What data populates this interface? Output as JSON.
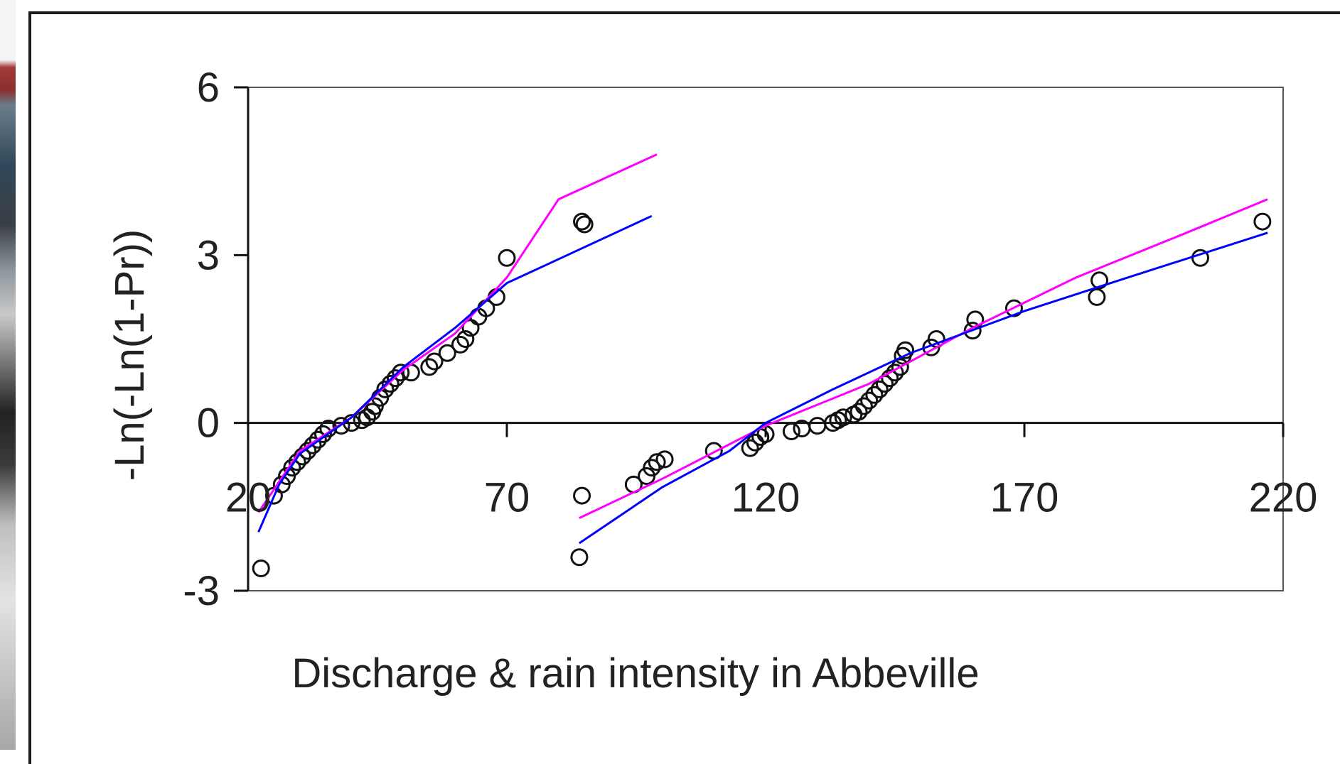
{
  "chart_data": {
    "type": "scatter",
    "title": "",
    "xlabel": "Discharge & rain intensity in Abbeville",
    "ylabel": "-Ln(-Ln(1-Pr))",
    "xlim": [
      20,
      220
    ],
    "ylim": [
      -3,
      6
    ],
    "x_ticks": [
      20,
      70,
      120,
      170,
      220
    ],
    "x_tick_labels": [
      "20",
      "70",
      "120",
      "170",
      "220"
    ],
    "y_ticks": [
      -3,
      0,
      3,
      6
    ],
    "y_tick_labels": [
      "-3",
      "0",
      "3",
      "6"
    ],
    "zero_line": true,
    "grid": false,
    "legend": "none",
    "series": [
      {
        "kind": "points",
        "marker": "open-circle",
        "color": "#111111",
        "points": [
          [
            22.5,
            -2.6
          ],
          [
            25,
            -1.3
          ],
          [
            26.5,
            -1.1
          ],
          [
            27.5,
            -0.95
          ],
          [
            28.5,
            -0.8
          ],
          [
            29.5,
            -0.7
          ],
          [
            30.5,
            -0.6
          ],
          [
            31.5,
            -0.5
          ],
          [
            32.5,
            -0.4
          ],
          [
            33.5,
            -0.3
          ],
          [
            34.5,
            -0.2
          ],
          [
            35.5,
            -0.1
          ],
          [
            38,
            -0.05
          ],
          [
            40,
            0.0
          ],
          [
            42,
            0.05
          ],
          [
            43,
            0.1
          ],
          [
            44,
            0.2
          ],
          [
            44.5,
            0.3
          ],
          [
            45.5,
            0.45
          ],
          [
            46.5,
            0.6
          ],
          [
            47.5,
            0.7
          ],
          [
            48.5,
            0.8
          ],
          [
            49.5,
            0.9
          ],
          [
            51.5,
            0.9
          ],
          [
            55,
            1.0
          ],
          [
            56,
            1.1
          ],
          [
            58.5,
            1.25
          ],
          [
            61,
            1.4
          ],
          [
            62,
            1.5
          ],
          [
            63,
            1.7
          ],
          [
            64.5,
            1.9
          ],
          [
            66,
            2.05
          ],
          [
            68,
            2.25
          ],
          [
            70,
            2.95
          ],
          [
            84.5,
            3.6
          ],
          [
            85,
            3.55
          ]
        ]
      },
      {
        "kind": "points",
        "marker": "open-circle",
        "color": "#111111",
        "points": [
          [
            84,
            -2.4
          ],
          [
            84.5,
            -1.3
          ],
          [
            94.5,
            -1.1
          ],
          [
            97,
            -0.95
          ],
          [
            98,
            -0.8
          ],
          [
            99,
            -0.7
          ],
          [
            100.5,
            -0.65
          ],
          [
            110,
            -0.5
          ],
          [
            117,
            -0.45
          ],
          [
            118,
            -0.35
          ],
          [
            119,
            -0.25
          ],
          [
            120,
            -0.2
          ],
          [
            125,
            -0.15
          ],
          [
            127,
            -0.1
          ],
          [
            130,
            -0.05
          ],
          [
            133,
            0.0
          ],
          [
            134,
            0.05
          ],
          [
            135,
            0.1
          ],
          [
            137,
            0.15
          ],
          [
            138,
            0.2
          ],
          [
            139,
            0.3
          ],
          [
            140,
            0.4
          ],
          [
            141,
            0.5
          ],
          [
            142,
            0.6
          ],
          [
            143,
            0.7
          ],
          [
            144,
            0.8
          ],
          [
            145,
            0.9
          ],
          [
            146,
            1.0
          ],
          [
            146.5,
            1.2
          ],
          [
            147,
            1.3
          ],
          [
            152,
            1.35
          ],
          [
            153,
            1.5
          ],
          [
            160,
            1.65
          ],
          [
            160.5,
            1.85
          ],
          [
            168,
            2.05
          ],
          [
            184,
            2.25
          ],
          [
            184.5,
            2.55
          ],
          [
            204,
            2.95
          ],
          [
            216,
            3.6
          ]
        ]
      },
      {
        "kind": "line",
        "color": "#ff00ff",
        "points": [
          [
            22,
            -1.6
          ],
          [
            30,
            -0.5
          ],
          [
            40,
            0.1
          ],
          [
            50,
            0.95
          ],
          [
            60,
            1.6
          ],
          [
            70,
            2.6
          ],
          [
            80,
            4.0
          ],
          [
            99,
            4.8
          ]
        ]
      },
      {
        "kind": "line",
        "color": "#0000ff",
        "points": [
          [
            22,
            -1.95
          ],
          [
            26,
            -1.1
          ],
          [
            30,
            -0.55
          ],
          [
            40,
            0.1
          ],
          [
            50,
            1.0
          ],
          [
            60,
            1.7
          ],
          [
            70,
            2.5
          ],
          [
            98,
            3.7
          ]
        ]
      },
      {
        "kind": "line",
        "color": "#ff00ff",
        "points": [
          [
            84,
            -1.7
          ],
          [
            100,
            -1.0
          ],
          [
            120,
            -0.05
          ],
          [
            140,
            0.7
          ],
          [
            160,
            1.7
          ],
          [
            180,
            2.6
          ],
          [
            200,
            3.35
          ],
          [
            217,
            4.0
          ]
        ]
      },
      {
        "kind": "line",
        "color": "#0000ff",
        "points": [
          [
            84,
            -2.15
          ],
          [
            100,
            -1.15
          ],
          [
            113,
            -0.5
          ],
          [
            120,
            0.0
          ],
          [
            133,
            0.6
          ],
          [
            148,
            1.25
          ],
          [
            170,
            2.0
          ],
          [
            190,
            2.6
          ],
          [
            217,
            3.4
          ]
        ]
      }
    ]
  }
}
